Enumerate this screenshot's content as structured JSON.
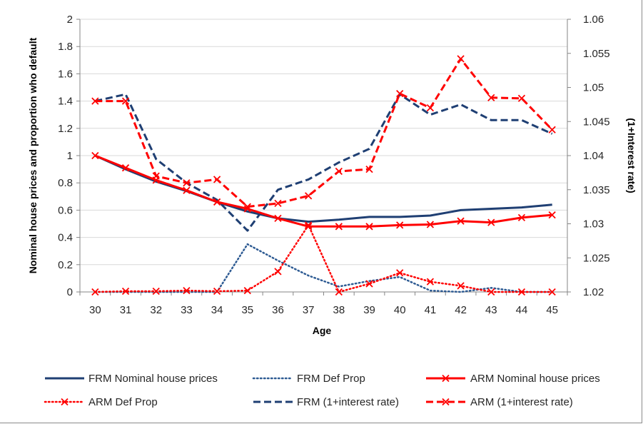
{
  "chart_data": {
    "type": "line",
    "title": "",
    "xlabel": "Age",
    "ylabel": "Nominal house prices and proportion who default",
    "y2label": "(1+Interest rate)",
    "x": [
      30,
      31,
      32,
      33,
      34,
      35,
      36,
      37,
      38,
      39,
      40,
      41,
      42,
      43,
      44,
      45
    ],
    "ylim": [
      0,
      2
    ],
    "y_ticks": [
      "0",
      "0.2",
      "0.4",
      "0.6",
      "0.8",
      "1",
      "1.2",
      "1.4",
      "1.6",
      "1.8",
      "2"
    ],
    "y2lim": [
      1.02,
      1.06
    ],
    "y2_ticks": [
      "1.02",
      "1.025",
      "1.03",
      "1.035",
      "1.04",
      "1.045",
      "1.05",
      "1.055",
      "1.06"
    ],
    "grid": "horizontal",
    "legend_position": "bottom",
    "series": [
      {
        "name": "FRM Nominal house prices",
        "axis": "left",
        "color": "#1f3f73",
        "style": "solid",
        "marker": "none",
        "values": [
          1.0,
          0.9,
          0.81,
          0.74,
          0.66,
          0.59,
          0.54,
          0.515,
          0.53,
          0.55,
          0.55,
          0.56,
          0.6,
          0.61,
          0.62,
          0.64
        ]
      },
      {
        "name": "FRM Def Prop",
        "axis": "left",
        "color": "#2e5b93",
        "style": "dotted",
        "marker": "none",
        "values": [
          0.0,
          0.0,
          0.0,
          0.0,
          0.0,
          0.35,
          0.23,
          0.12,
          0.04,
          0.08,
          0.11,
          0.01,
          0.0,
          0.03,
          0.0,
          0.0
        ]
      },
      {
        "name": "ARM Nominal house prices",
        "axis": "left",
        "color": "#ff0000",
        "style": "solid",
        "marker": "x",
        "values": [
          1.0,
          0.91,
          0.82,
          0.745,
          0.66,
          0.61,
          0.54,
          0.48,
          0.48,
          0.48,
          0.49,
          0.495,
          0.52,
          0.51,
          0.545,
          0.565
        ]
      },
      {
        "name": "ARM Def Prop",
        "axis": "left",
        "color": "#ff0000",
        "style": "dotted",
        "marker": "x",
        "values": [
          0.0,
          0.005,
          0.005,
          0.01,
          0.005,
          0.01,
          0.15,
          0.49,
          0.0,
          0.06,
          0.14,
          0.075,
          0.045,
          0.0,
          0.0,
          0.0
        ]
      },
      {
        "name": "FRM (1+interest rate)",
        "axis": "right",
        "color": "#1f3f73",
        "style": "dashed",
        "marker": "none",
        "values": [
          1.048,
          1.049,
          1.0395,
          1.036,
          1.0335,
          1.029,
          1.035,
          1.0365,
          1.039,
          1.041,
          1.049,
          1.046,
          1.0475,
          1.0452,
          1.0452,
          1.0432
        ]
      },
      {
        "name": "ARM (1+interest rate)",
        "axis": "right",
        "color": "#ff0000",
        "style": "dashed",
        "marker": "x",
        "values": [
          1.048,
          1.048,
          1.037,
          1.036,
          1.0365,
          1.0325,
          1.033,
          1.0341,
          1.0377,
          1.038,
          1.0491,
          1.047,
          1.0542,
          1.0485,
          1.0484,
          1.0438
        ]
      }
    ]
  }
}
